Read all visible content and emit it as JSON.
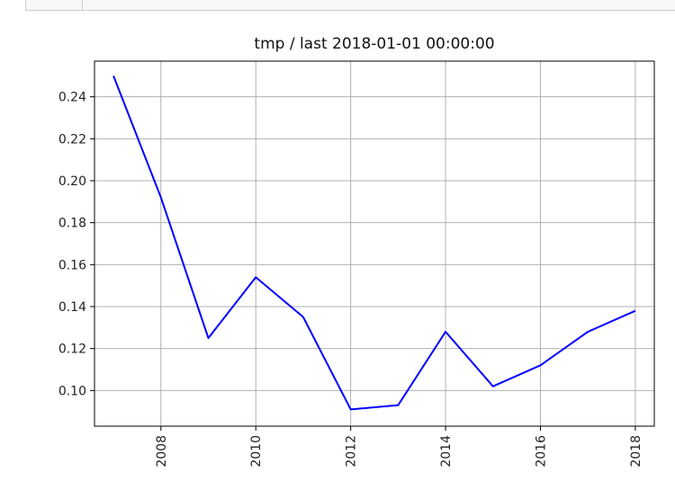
{
  "chart_data": {
    "type": "line",
    "title": "tmp / last 2018-01-01 00:00:00",
    "xlabel": "",
    "ylabel": "",
    "x": [
      2007,
      2008,
      2009,
      2010,
      2011,
      2012,
      2013,
      2014,
      2015,
      2016,
      2017,
      2018
    ],
    "series": [
      {
        "values": [
          0.25,
          0.192,
          0.125,
          0.154,
          0.135,
          0.091,
          0.093,
          0.128,
          0.102,
          0.112,
          0.128,
          0.138
        ],
        "color": "#0000ff"
      }
    ],
    "xlim": [
      2006.6,
      2018.4
    ],
    "ylim": [
      0.083,
      0.257
    ],
    "x_ticks": [
      "2008",
      "2010",
      "2012",
      "2014",
      "2016",
      "2018"
    ],
    "y_ticks": [
      "0.10",
      "0.12",
      "0.14",
      "0.16",
      "0.18",
      "0.20",
      "0.22",
      "0.24"
    ],
    "grid": true,
    "x_tick_rotation": "vertical"
  }
}
